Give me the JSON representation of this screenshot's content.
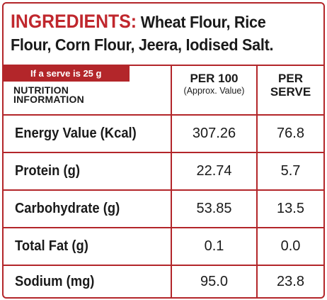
{
  "ingredients": {
    "label": "INGREDIENTS:",
    "text_line1": "Wheat Flour, Rice",
    "text_line2": "Flour, Corn Flour, Jeera, Iodised Salt."
  },
  "table": {
    "serve_note": "If a serve is 25 g",
    "title_line1": "NUTRITION",
    "title_line2": "INFORMATION",
    "col1_main": "PER 100",
    "col1_sub": "(Approx. Value)",
    "col2_line1": "PER",
    "col2_line2": "SERVE",
    "rows": [
      {
        "label": "Energy Value (Kcal)",
        "per100": "307.26",
        "perServe": "76.8"
      },
      {
        "label": "Protein (g)",
        "per100": "22.74",
        "perServe": "5.7"
      },
      {
        "label": "Carbohydrate (g)",
        "per100": "53.85",
        "perServe": "13.5"
      },
      {
        "label": "Total Fat (g)",
        "per100": "0.1",
        "perServe": "0.0"
      },
      {
        "label": "Sodium (mg)",
        "per100": "95.0",
        "perServe": "23.8"
      }
    ]
  },
  "colors": {
    "border": "#b3262a",
    "heading": "#c0272d",
    "text": "#1a1a1a"
  }
}
